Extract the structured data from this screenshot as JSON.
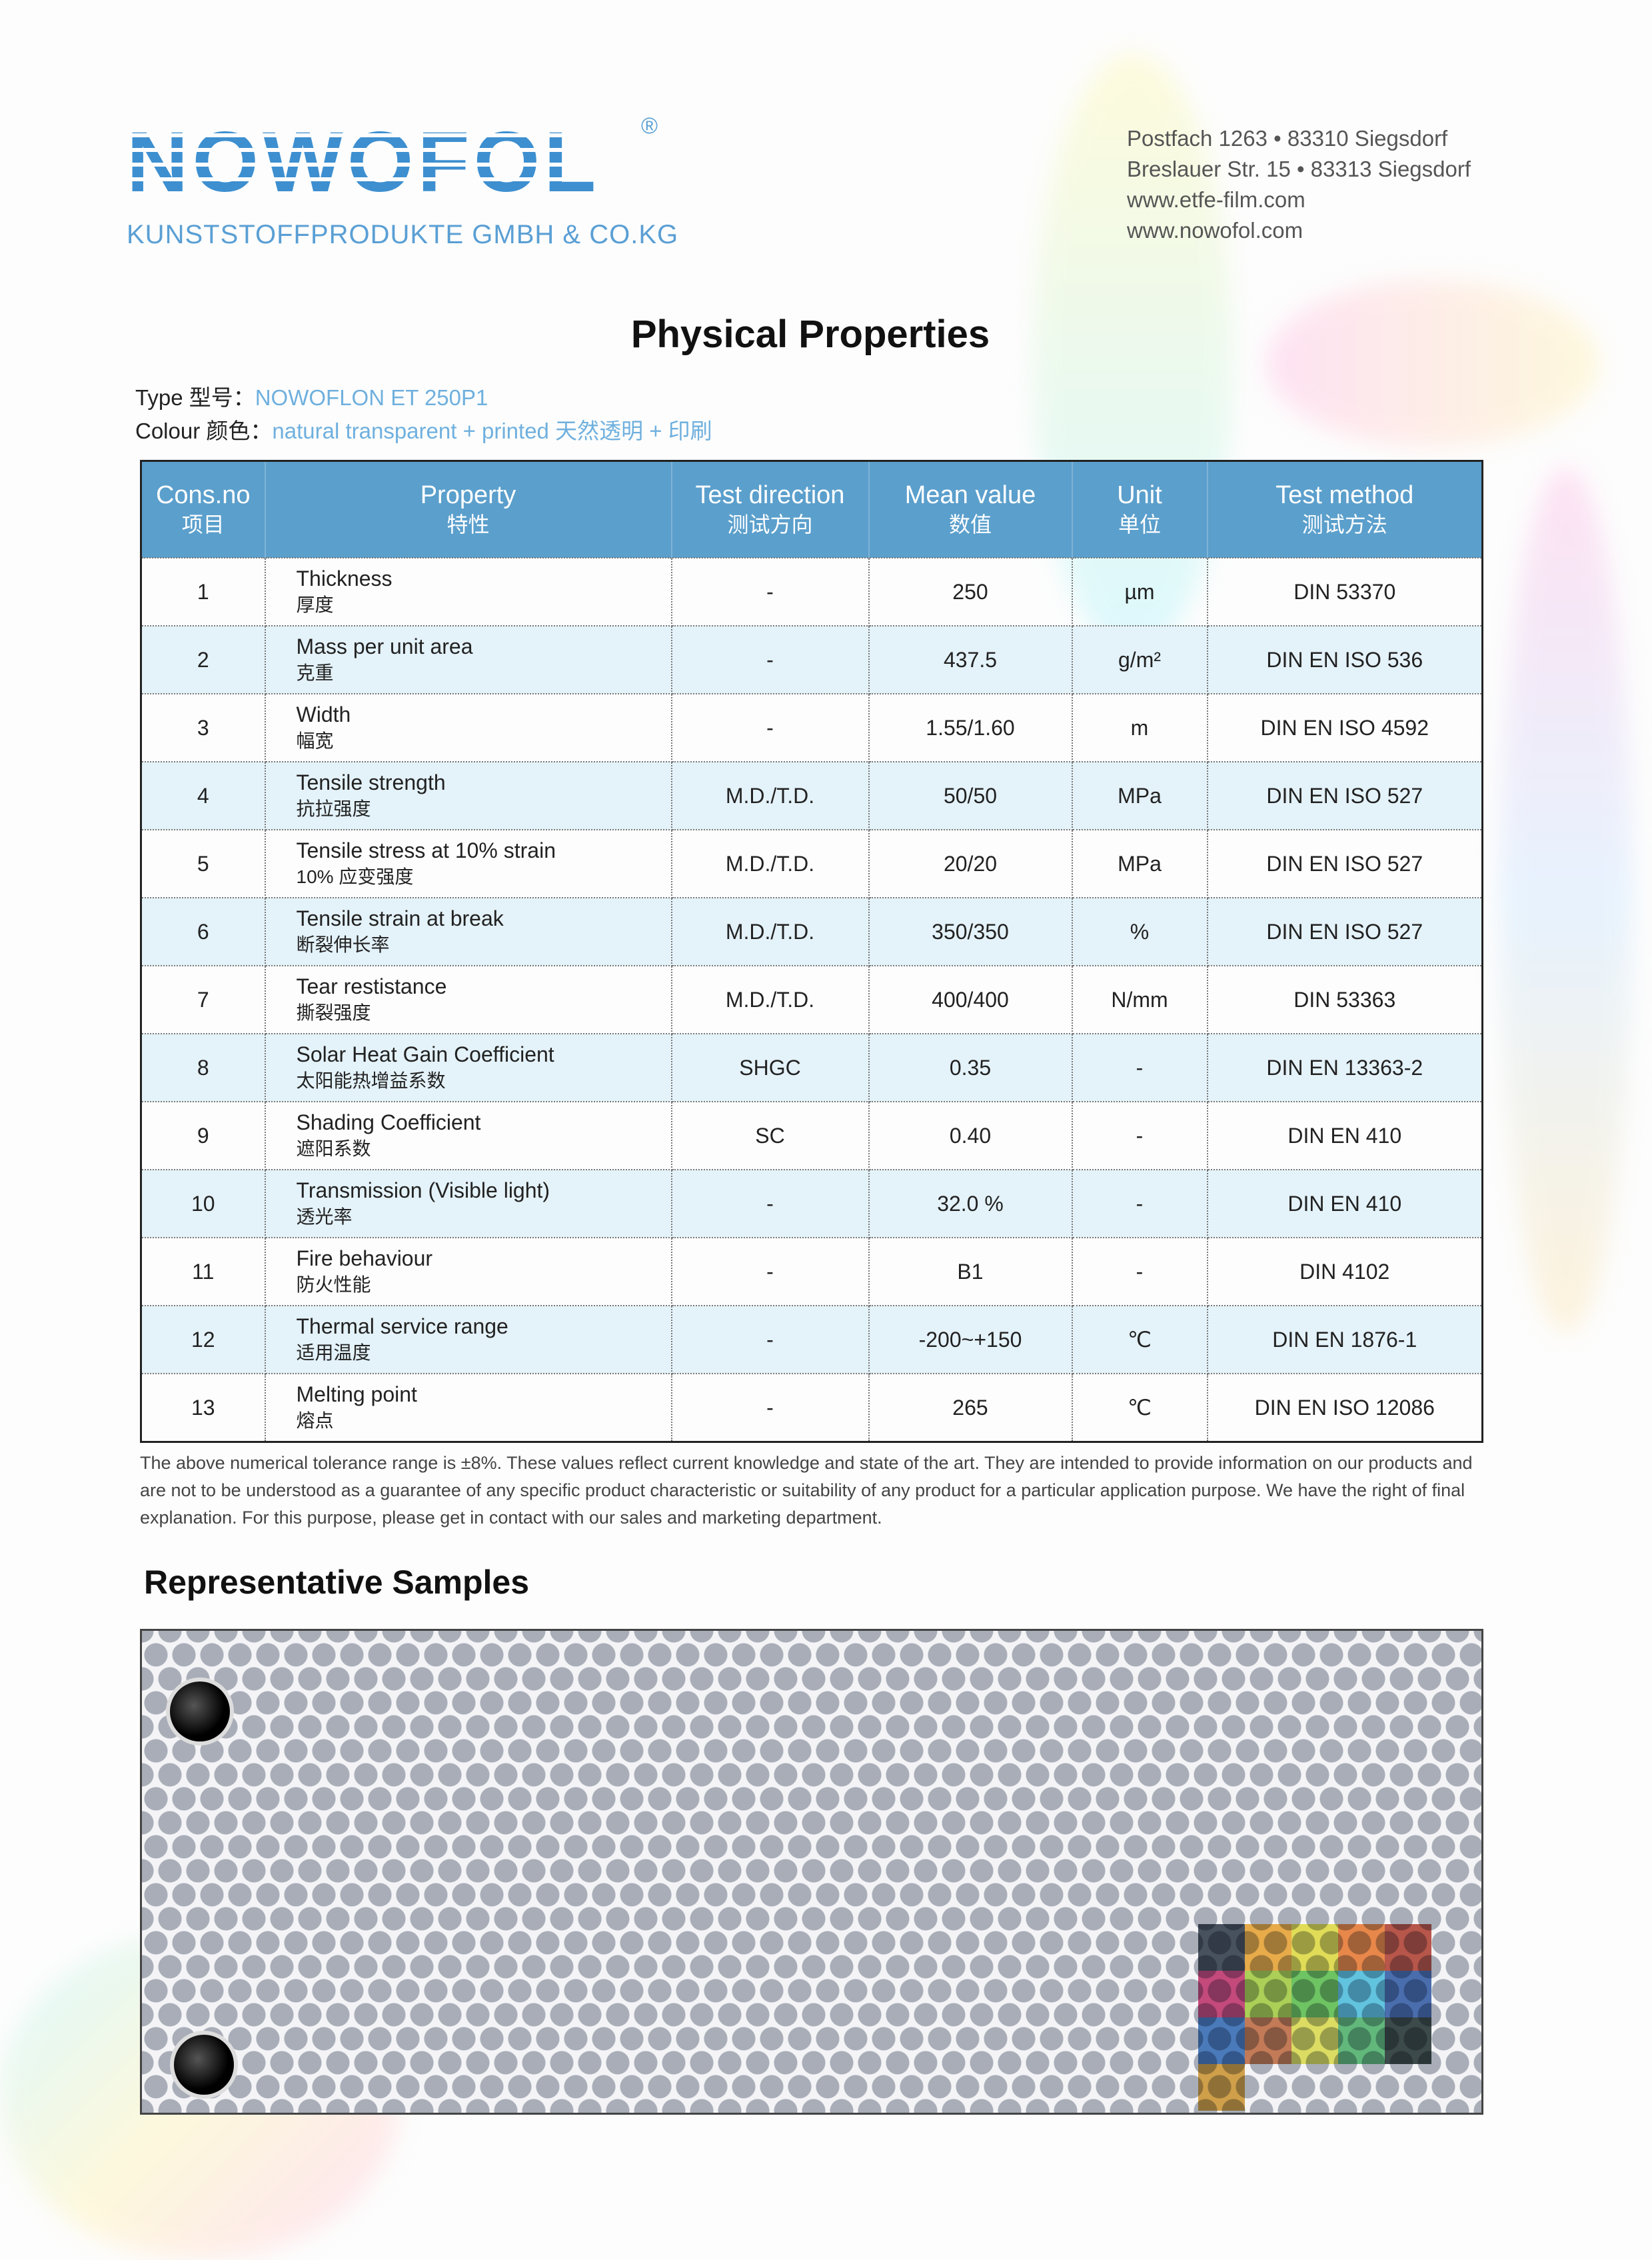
{
  "header": {
    "logo_text": "NOWOFOL",
    "registered_mark": "®",
    "company": "KUNSTSTOFFPRODUKTE GMBH & CO.KG",
    "address": [
      "Postfach 1263 • 83310 Siegsdorf",
      "Breslauer Str. 15 • 83313 Siegsdorf",
      "www.etfe-film.com",
      "www.nowofol.com"
    ]
  },
  "title": "Physical Properties",
  "meta": {
    "type_label": "Type 型号：",
    "type_value": "NOWOFLON ET 250P1",
    "colour_label": "Colour 颜色：",
    "colour_value": "natural transparent + printed 天然透明 + 印刷"
  },
  "table": {
    "headers": [
      {
        "en": "Cons.no",
        "zh": "项目"
      },
      {
        "en": "Property",
        "zh": "特性"
      },
      {
        "en": "Test direction",
        "zh": "测试方向"
      },
      {
        "en": "Mean value",
        "zh": "数值"
      },
      {
        "en": "Unit",
        "zh": "单位"
      },
      {
        "en": "Test method",
        "zh": "测试方法"
      }
    ],
    "rows": [
      {
        "no": "1",
        "en": "Thickness",
        "zh": "厚度",
        "dir": "-",
        "val": "250",
        "unit": "µm",
        "method": "DIN 53370"
      },
      {
        "no": "2",
        "en": "Mass per unit area",
        "zh": "克重",
        "dir": "-",
        "val": "437.5",
        "unit": "g/m²",
        "method": "DIN EN ISO 536"
      },
      {
        "no": "3",
        "en": "Width",
        "zh": "幅宽",
        "dir": "-",
        "val": "1.55/1.60",
        "unit": "m",
        "method": "DIN EN ISO 4592"
      },
      {
        "no": "4",
        "en": "Tensile strength",
        "zh": "抗拉强度",
        "dir": "M.D./T.D.",
        "val": "50/50",
        "unit": "MPa",
        "method": "DIN EN ISO 527"
      },
      {
        "no": "5",
        "en": "Tensile stress at 10% strain",
        "zh": "10% 应变强度",
        "dir": "M.D./T.D.",
        "val": "20/20",
        "unit": "MPa",
        "method": "DIN EN ISO 527"
      },
      {
        "no": "6",
        "en": "Tensile strain at break",
        "zh": "断裂伸长率",
        "dir": "M.D./T.D.",
        "val": "350/350",
        "unit": "%",
        "method": "DIN EN ISO 527"
      },
      {
        "no": "7",
        "en": "Tear restistance",
        "zh": "撕裂强度",
        "dir": "M.D./T.D.",
        "val": "400/400",
        "unit": "N/mm",
        "method": "DIN 53363"
      },
      {
        "no": "8",
        "en": "Solar Heat Gain Coefficient",
        "zh": "太阳能热增益系数",
        "dir": "SHGC",
        "val": "0.35",
        "unit": "-",
        "method": "DIN EN 13363-2"
      },
      {
        "no": "9",
        "en": "Shading Coefficient",
        "zh": "遮阳系数",
        "dir": "SC",
        "val": "0.40",
        "unit": "-",
        "method": "DIN EN 410"
      },
      {
        "no": "10",
        "en": "Transmission (Visible light)",
        "zh": "透光率",
        "dir": "-",
        "val": "32.0 %",
        "unit": "-",
        "method": "DIN EN 410"
      },
      {
        "no": "11",
        "en": "Fire behaviour",
        "zh": "防火性能",
        "dir": "-",
        "val": "B1",
        "unit": "-",
        "method": "DIN 4102"
      },
      {
        "no": "12",
        "en": "Thermal service range",
        "zh": "适用温度",
        "dir": "-",
        "val": "-200~+150",
        "unit": "℃",
        "method": "DIN EN 1876-1"
      },
      {
        "no": "13",
        "en": "Melting point",
        "zh": "熔点",
        "dir": "-",
        "val": "265",
        "unit": "℃",
        "method": "DIN EN ISO 12086"
      }
    ]
  },
  "note": "The above numerical tolerance range is ±8%. These values reflect current knowledge and state of the art. They are  intended to provide information on our products and are not to be understood as a guarantee of any specific product characteristic or suitability of any product for a particular application purpose. We have the right of final explanation. For this purpose, please get in contact with our sales and marketing department.",
  "samples_title": "Representative Samples",
  "colors": {
    "brand_blue": "#3d8fd0",
    "header_blue": "#5b9fcc",
    "row_alt": "#e4f2f9",
    "value_blue": "#6fb0de"
  },
  "sample_patch_colors": [
    "#1e2a3a",
    "#f0a020",
    "#e8e030",
    "#f07020",
    "#b03020",
    "#c02060",
    "#a0d030",
    "#50c040",
    "#40c0e0",
    "#2050a0",
    "#2060b0",
    "#c06030",
    "#e0e040",
    "#40b060",
    "#102020",
    "#d09020"
  ]
}
